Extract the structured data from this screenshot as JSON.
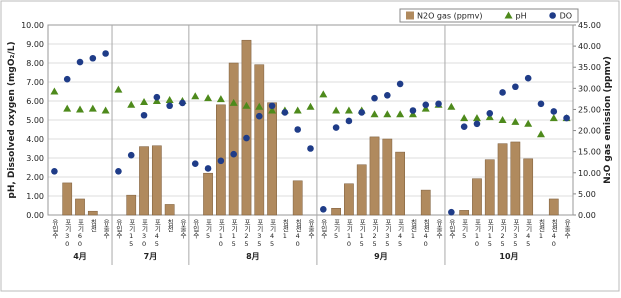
{
  "chart_data": {
    "type": "combo",
    "y_label": "pH, Dissolved oxygen (mgO₂/L)",
    "y2_label": "N₂O gas emission (ppmv)",
    "groups": [
      {
        "name": "4月",
        "categories": [
          "유입수",
          "포기30",
          "포기60",
          "침전",
          "유출수"
        ]
      },
      {
        "name": "7月",
        "categories": [
          "유입수",
          "포기15",
          "포기30",
          "포기45",
          "침전",
          "유출수"
        ]
      },
      {
        "name": "8月",
        "categories": [
          "유입수",
          "포기5",
          "포기10",
          "포기15",
          "포기25",
          "포기35",
          "포기45",
          "침전1",
          "침전40",
          "유출수"
        ]
      },
      {
        "name": "9月",
        "categories": [
          "유입수",
          "포기5",
          "포기10",
          "포기15",
          "포기25",
          "포기35",
          "포기45",
          "침전1",
          "침전40",
          "유출수"
        ]
      },
      {
        "name": "10月",
        "categories": [
          "유입수",
          "포기5",
          "포기10",
          "포기15",
          "포기25",
          "포기35",
          "포기45",
          "침전1",
          "침전40",
          "유출수"
        ]
      }
    ],
    "series": [
      {
        "name": "N2O gas (ppmv)",
        "type": "bar",
        "axis": "y2",
        "color": "#b08a5e",
        "values": [
          0,
          7.6,
          3.8,
          0.9,
          0,
          0,
          4.7,
          16.2,
          16.4,
          2.5,
          0,
          0,
          9.9,
          26.1,
          36,
          41.4,
          35.6,
          26.6,
          0,
          8.1,
          0,
          0,
          1.6,
          7.4,
          11.9,
          18.5,
          18,
          14.9,
          0,
          5.9,
          0,
          0,
          1.1,
          8.6,
          13.1,
          16.9,
          17.3,
          13.3,
          0,
          3.8,
          0
        ]
      },
      {
        "name": "pH",
        "type": "scatter",
        "marker": "triangle",
        "color": "#4e8a1c",
        "values": [
          6.5,
          5.6,
          5.55,
          5.6,
          5.5,
          6.6,
          5.8,
          5.95,
          6.0,
          6.05,
          6.0,
          6.25,
          6.15,
          6.1,
          5.9,
          5.75,
          5.7,
          5.5,
          5.5,
          5.5,
          5.7,
          6.35,
          5.5,
          5.5,
          5.5,
          5.3,
          5.3,
          5.3,
          5.3,
          5.6,
          5.8,
          5.7,
          5.1,
          5.1,
          5.15,
          5.0,
          4.9,
          4.8,
          4.25,
          5.1,
          5.1
        ]
      },
      {
        "name": "DO",
        "type": "scatter",
        "marker": "circle",
        "color": "#1f3c88",
        "values": [
          2.3,
          7.15,
          8.05,
          8.25,
          8.5,
          2.3,
          3.15,
          5.25,
          6.2,
          5.75,
          5.9,
          2.7,
          2.45,
          2.85,
          3.2,
          4.05,
          5.2,
          5.75,
          5.4,
          4.5,
          3.5,
          0.3,
          4.6,
          4.95,
          5.4,
          6.15,
          6.3,
          6.9,
          5.5,
          5.8,
          5.85,
          0.15,
          4.65,
          4.8,
          5.35,
          6.45,
          6.75,
          7.2,
          5.85,
          5.45,
          5.1
        ]
      }
    ],
    "ylim": [
      0,
      10
    ],
    "yticks": [
      {
        "value": 0,
        "label": "0.00"
      },
      {
        "value": 1,
        "label": "1.00"
      },
      {
        "value": 2,
        "label": "2.00"
      },
      {
        "value": 3,
        "label": "3.00"
      },
      {
        "value": 4,
        "label": "4.00"
      },
      {
        "value": 5,
        "label": "5.00"
      },
      {
        "value": 6,
        "label": "6.00"
      },
      {
        "value": 7,
        "label": "7.00"
      },
      {
        "value": 8,
        "label": "8.00"
      },
      {
        "value": 9,
        "label": "9.00"
      },
      {
        "value": 10,
        "label": "10.00"
      }
    ],
    "y2lim": [
      0,
      45
    ],
    "y2ticks": [
      {
        "value": 0,
        "label": "0.00"
      },
      {
        "value": 5,
        "label": "5.00"
      },
      {
        "value": 10,
        "label": "10.00"
      },
      {
        "value": 15,
        "label": "15.00"
      },
      {
        "value": 20,
        "label": "20.00"
      },
      {
        "value": 25,
        "label": "25.00"
      },
      {
        "value": 30,
        "label": "30.00"
      },
      {
        "value": 35,
        "label": "35.00"
      },
      {
        "value": 40,
        "label": "40.00"
      },
      {
        "value": 45,
        "label": "45.00"
      }
    ],
    "grid": true,
    "legend": "top-right"
  }
}
